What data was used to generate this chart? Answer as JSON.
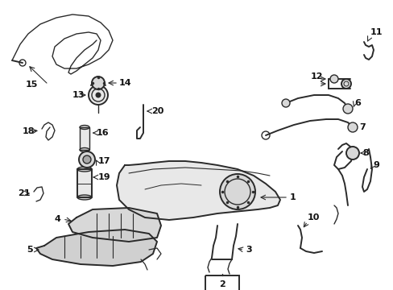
{
  "bg_color": "#ffffff",
  "line_color": "#2a2a2a",
  "label_color": "#111111",
  "fig_width": 4.89,
  "fig_height": 3.6,
  "dpi": 100
}
